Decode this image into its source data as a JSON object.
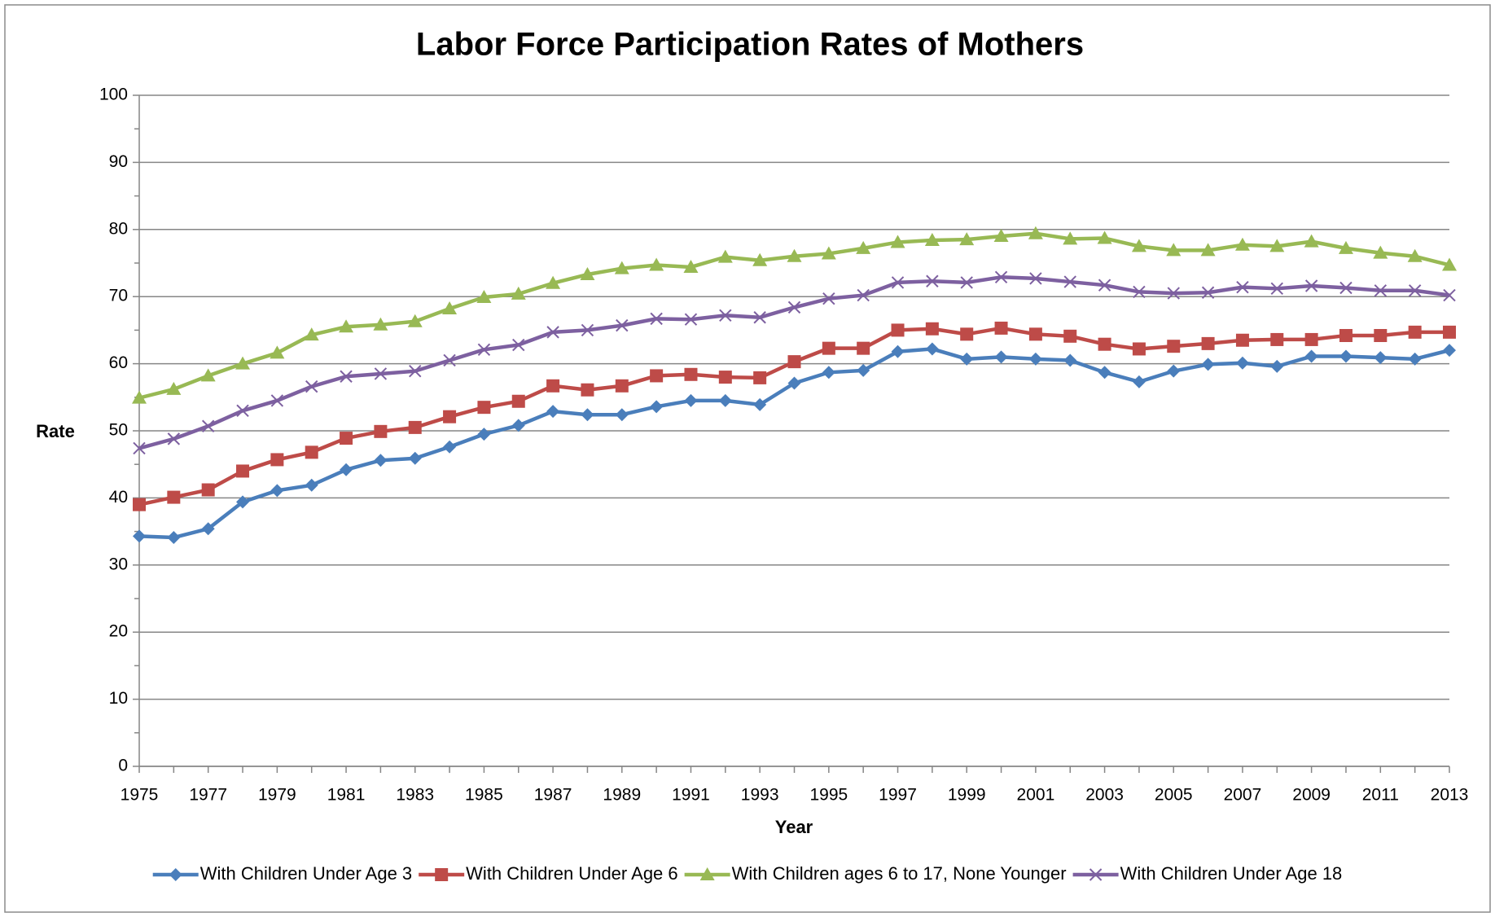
{
  "chart_data": {
    "type": "line",
    "title": "Labor Force Participation Rates of Mothers",
    "xlabel": "Year",
    "ylabel": "Rate",
    "x": [
      1975,
      1976,
      1977,
      1978,
      1979,
      1980,
      1981,
      1982,
      1983,
      1984,
      1985,
      1986,
      1987,
      1988,
      1989,
      1990,
      1991,
      1992,
      1993,
      1994,
      1995,
      1996,
      1997,
      1998,
      1999,
      2000,
      2001,
      2002,
      2003,
      2004,
      2005,
      2006,
      2007,
      2008,
      2009,
      2010,
      2011,
      2012,
      2013
    ],
    "xlim": [
      1975,
      2013
    ],
    "xticks": [
      1975,
      1977,
      1979,
      1981,
      1983,
      1985,
      1987,
      1989,
      1991,
      1993,
      1995,
      1997,
      1999,
      2001,
      2003,
      2005,
      2007,
      2009,
      2011,
      2013
    ],
    "ylim": [
      0,
      100
    ],
    "yticks": [
      0,
      10,
      20,
      30,
      40,
      50,
      60,
      70,
      80,
      90,
      100
    ],
    "grid": true,
    "series": [
      {
        "name": "With Children Under Age 3",
        "color": "#4a7ebb",
        "marker": "diamond",
        "values": [
          34.3,
          34.1,
          35.4,
          39.4,
          41.1,
          41.9,
          44.2,
          45.6,
          45.9,
          47.6,
          49.5,
          50.8,
          52.9,
          52.4,
          52.4,
          53.6,
          54.5,
          54.5,
          53.9,
          57.1,
          58.7,
          59.0,
          61.8,
          62.2,
          60.7,
          61.0,
          60.7,
          60.5,
          58.7,
          57.3,
          58.9,
          59.9,
          60.1,
          59.6,
          61.1,
          61.1,
          60.9,
          60.7,
          62.0
        ]
      },
      {
        "name": "With Children Under Age 6",
        "color": "#be4b48",
        "marker": "square",
        "values": [
          39.0,
          40.1,
          41.2,
          44.0,
          45.7,
          46.8,
          48.9,
          49.9,
          50.5,
          52.1,
          53.5,
          54.4,
          56.7,
          56.1,
          56.7,
          58.2,
          58.4,
          58.0,
          57.9,
          60.3,
          62.3,
          62.3,
          65.0,
          65.2,
          64.4,
          65.3,
          64.4,
          64.1,
          62.9,
          62.2,
          62.6,
          63.0,
          63.5,
          63.6,
          63.6,
          64.2,
          64.2,
          64.7,
          64.7
        ]
      },
      {
        "name": "With Children ages 6 to 17, None Younger",
        "color": "#98b954",
        "marker": "triangle",
        "values": [
          54.9,
          56.2,
          58.2,
          60.0,
          61.6,
          64.3,
          65.5,
          65.8,
          66.3,
          68.2,
          69.9,
          70.4,
          72.0,
          73.3,
          74.2,
          74.7,
          74.4,
          75.9,
          75.4,
          76.0,
          76.4,
          77.2,
          78.1,
          78.4,
          78.5,
          79.0,
          79.4,
          78.6,
          78.7,
          77.5,
          76.9,
          76.9,
          77.7,
          77.5,
          78.2,
          77.2,
          76.5,
          76.0,
          74.7
        ]
      },
      {
        "name": "With Children Under Age 18",
        "color": "#7d60a0",
        "marker": "x",
        "values": [
          47.4,
          48.8,
          50.7,
          53.0,
          54.5,
          56.6,
          58.1,
          58.5,
          58.9,
          60.5,
          62.1,
          62.8,
          64.7,
          65.0,
          65.7,
          66.7,
          66.6,
          67.2,
          66.9,
          68.4,
          69.7,
          70.2,
          72.1,
          72.3,
          72.1,
          72.9,
          72.7,
          72.2,
          71.7,
          70.7,
          70.5,
          70.6,
          71.4,
          71.2,
          71.6,
          71.3,
          70.9,
          70.9,
          70.2
        ]
      }
    ]
  }
}
